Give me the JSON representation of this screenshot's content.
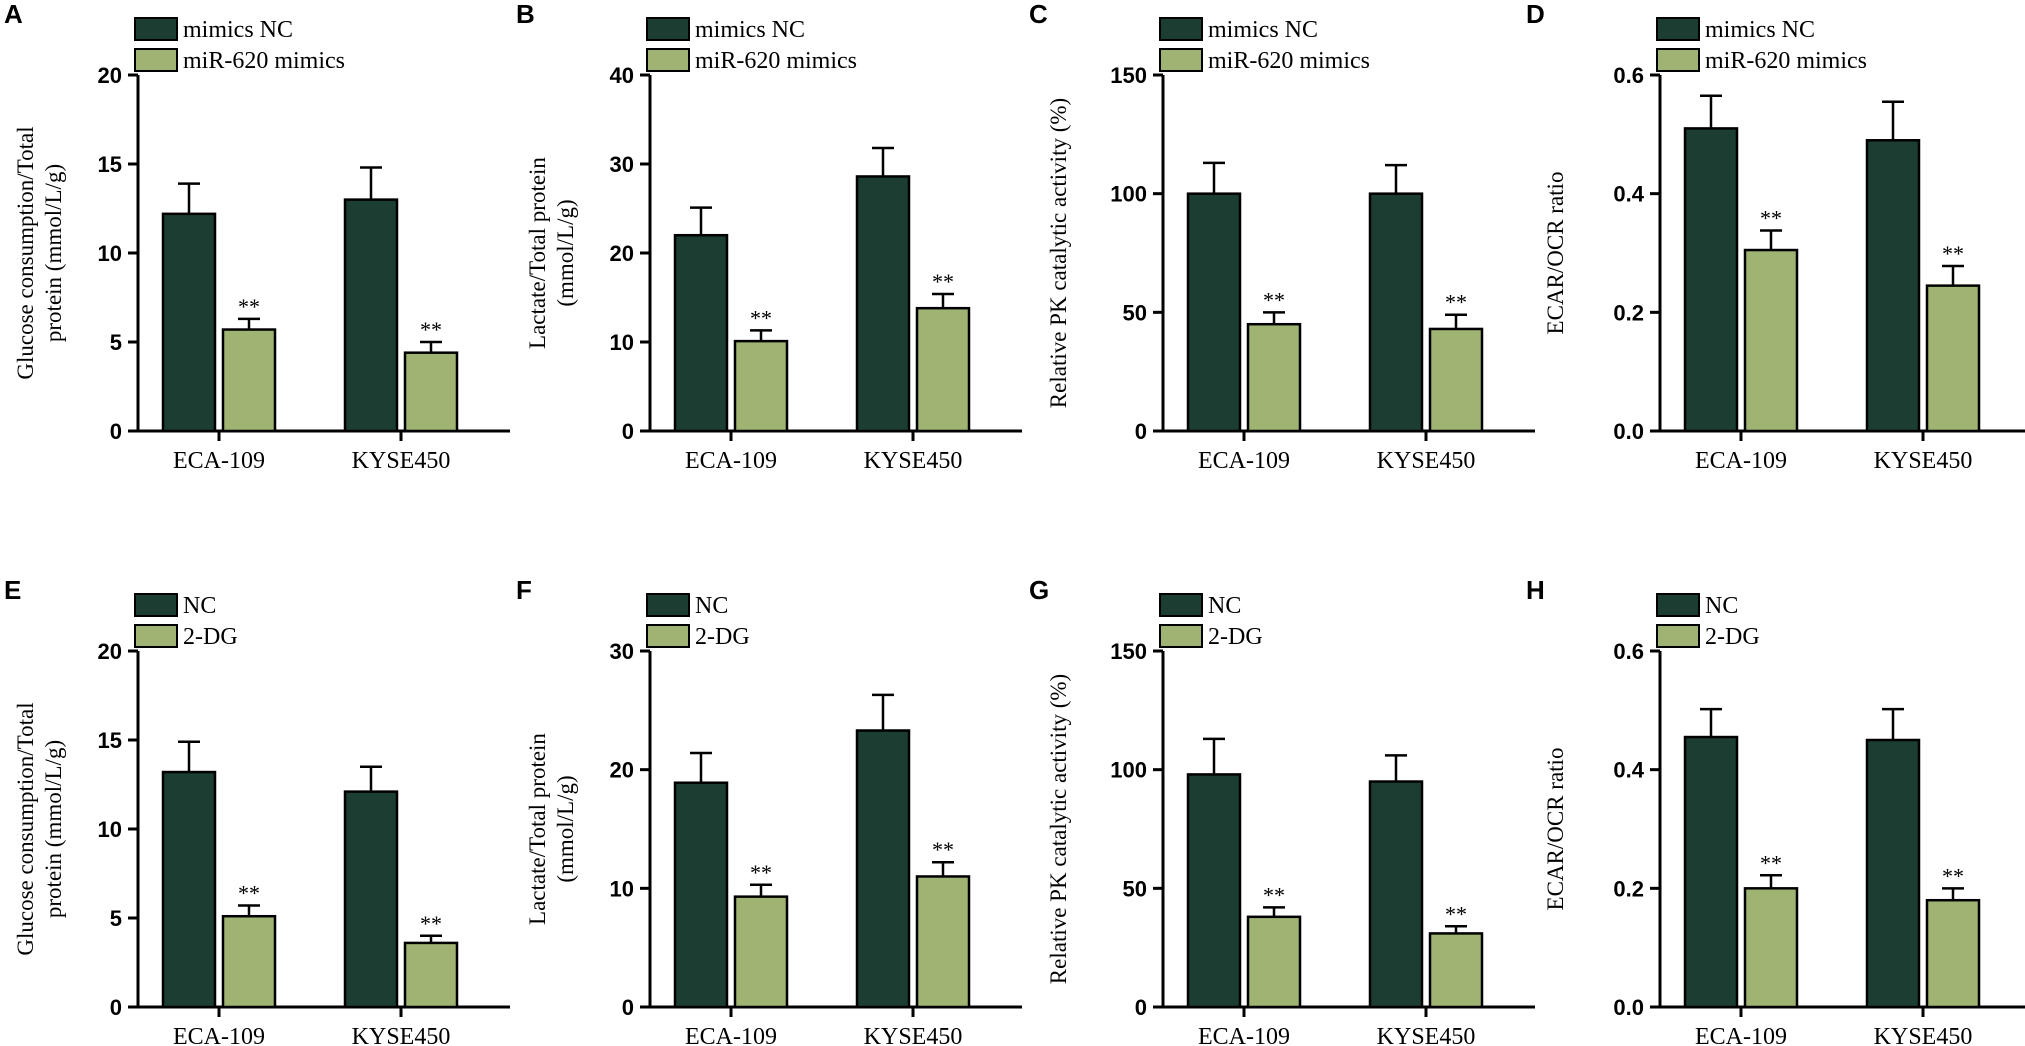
{
  "colors": {
    "control": "#1b3d32",
    "treatment": "#9fb472",
    "axis": "#000000"
  },
  "chart_data": [
    {
      "letter": "A",
      "type": "bar",
      "categories": [
        "ECA-109",
        "KYSE450"
      ],
      "ylabel": [
        "Glucose consumption/Total",
        "protein (mmol/L/g)"
      ],
      "ylim": [
        0,
        20
      ],
      "yticks": [
        "0",
        "5",
        "10",
        "15",
        "20"
      ],
      "series": [
        {
          "name": "mimics NC",
          "values": [
            12.2,
            13.0
          ],
          "errors": [
            1.7,
            1.8
          ],
          "sig": [
            "",
            ""
          ]
        },
        {
          "name": "miR-620 mimics",
          "values": [
            5.7,
            4.4
          ],
          "errors": [
            0.6,
            0.6
          ],
          "sig": [
            "**",
            "**"
          ]
        }
      ]
    },
    {
      "letter": "B",
      "type": "bar",
      "categories": [
        "ECA-109",
        "KYSE450"
      ],
      "ylabel": [
        "Lactate/Total protein",
        "(mmol/L/g)"
      ],
      "ylim": [
        0,
        40
      ],
      "yticks": [
        "0",
        "10",
        "20",
        "30",
        "40"
      ],
      "series": [
        {
          "name": "mimics NC",
          "values": [
            22.0,
            28.6
          ],
          "errors": [
            3.1,
            3.2
          ],
          "sig": [
            "",
            ""
          ]
        },
        {
          "name": "miR-620 mimics",
          "values": [
            10.1,
            13.8
          ],
          "errors": [
            1.2,
            1.6
          ],
          "sig": [
            "**",
            "**"
          ]
        }
      ]
    },
    {
      "letter": "C",
      "type": "bar",
      "categories": [
        "ECA-109",
        "KYSE450"
      ],
      "ylabel": [
        "Relative PK catalytic activity (%)"
      ],
      "ylim": [
        0,
        150
      ],
      "yticks": [
        "0",
        "50",
        "100",
        "150"
      ],
      "series": [
        {
          "name": "mimics NC",
          "values": [
            100,
            100
          ],
          "errors": [
            13,
            12
          ],
          "sig": [
            "",
            ""
          ]
        },
        {
          "name": "miR-620 mimics",
          "values": [
            45,
            43
          ],
          "errors": [
            5,
            6
          ],
          "sig": [
            "**",
            "**"
          ]
        }
      ]
    },
    {
      "letter": "D",
      "type": "bar",
      "categories": [
        "ECA-109",
        "KYSE450"
      ],
      "ylabel": [
        "ECAR/OCR ratio"
      ],
      "ylim": [
        0,
        0.6
      ],
      "yticks": [
        "0.0",
        "0.2",
        "0.4",
        "0.6"
      ],
      "series": [
        {
          "name": "mimics NC",
          "values": [
            0.51,
            0.49
          ],
          "errors": [
            0.055,
            0.065
          ],
          "sig": [
            "",
            ""
          ]
        },
        {
          "name": "miR-620 mimics",
          "values": [
            0.305,
            0.245
          ],
          "errors": [
            0.033,
            0.033
          ],
          "sig": [
            "**",
            "**"
          ]
        }
      ]
    },
    {
      "letter": "E",
      "type": "bar",
      "categories": [
        "ECA-109",
        "KYSE450"
      ],
      "ylabel": [
        "Glucose consumption/Total",
        "protein (mmol/L/g)"
      ],
      "ylim": [
        0,
        20
      ],
      "yticks": [
        "0",
        "5",
        "10",
        "15",
        "20"
      ],
      "series": [
        {
          "name": "NC",
          "values": [
            13.2,
            12.1
          ],
          "errors": [
            1.7,
            1.4
          ],
          "sig": [
            "",
            ""
          ]
        },
        {
          "name": "2-DG",
          "values": [
            5.1,
            3.6
          ],
          "errors": [
            0.6,
            0.4
          ],
          "sig": [
            "**",
            "**"
          ]
        }
      ]
    },
    {
      "letter": "F",
      "type": "bar",
      "categories": [
        "ECA-109",
        "KYSE450"
      ],
      "ylabel": [
        "Lactate/Total protein",
        "(mmol/L/g)"
      ],
      "ylim": [
        0,
        30
      ],
      "yticks": [
        "0",
        "10",
        "20",
        "30"
      ],
      "series": [
        {
          "name": "NC",
          "values": [
            18.9,
            23.3
          ],
          "errors": [
            2.5,
            3.0
          ],
          "sig": [
            "",
            ""
          ]
        },
        {
          "name": "2-DG",
          "values": [
            9.3,
            11.0
          ],
          "errors": [
            1.0,
            1.2
          ],
          "sig": [
            "**",
            "**"
          ]
        }
      ]
    },
    {
      "letter": "G",
      "type": "bar",
      "categories": [
        "ECA-109",
        "KYSE450"
      ],
      "ylabel": [
        "Relative PK catalytic activity (%)"
      ],
      "ylim": [
        0,
        150
      ],
      "yticks": [
        "0",
        "50",
        "100",
        "150"
      ],
      "series": [
        {
          "name": "NC",
          "values": [
            98,
            95
          ],
          "errors": [
            15,
            11
          ],
          "sig": [
            "",
            ""
          ]
        },
        {
          "name": "2-DG",
          "values": [
            38,
            31
          ],
          "errors": [
            4,
            3
          ],
          "sig": [
            "**",
            "**"
          ]
        }
      ]
    },
    {
      "letter": "H",
      "type": "bar",
      "categories": [
        "ECA-109",
        "KYSE450"
      ],
      "ylabel": [
        "ECAR/OCR ratio"
      ],
      "ylim": [
        0,
        0.6
      ],
      "yticks": [
        "0.0",
        "0.2",
        "0.4",
        "0.6"
      ],
      "series": [
        {
          "name": "NC",
          "values": [
            0.455,
            0.45
          ],
          "errors": [
            0.047,
            0.052
          ],
          "sig": [
            "",
            ""
          ]
        },
        {
          "name": "2-DG",
          "values": [
            0.2,
            0.18
          ],
          "errors": [
            0.022,
            0.02
          ],
          "sig": [
            "**",
            "**"
          ]
        }
      ]
    }
  ]
}
